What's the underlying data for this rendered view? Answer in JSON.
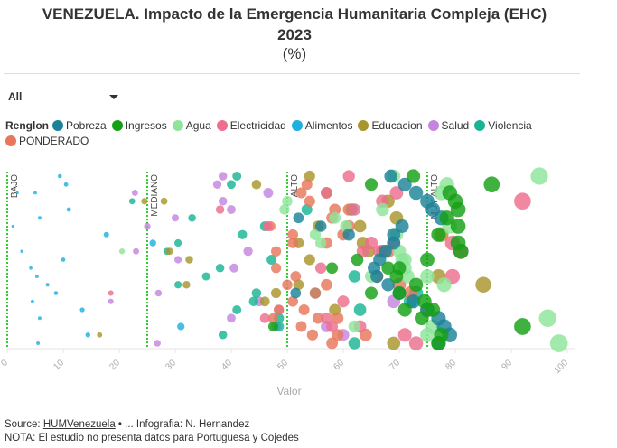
{
  "header": {
    "title": "VENEZUELA. Impacto de la Emergencia Humanitaria Compleja (EHC)",
    "title_line2": "2023",
    "subtitle": "(%)"
  },
  "filter": {
    "selected": "All"
  },
  "legend": {
    "title": "Renglon",
    "items": [
      {
        "label": "Pobreza",
        "color": "#1b8398"
      },
      {
        "label": "Ingresos",
        "color": "#14a014"
      },
      {
        "label": "Agua",
        "color": "#8ee59a"
      },
      {
        "label": "Electricidad",
        "color": "#ed6e8e"
      },
      {
        "label": "Alimentos",
        "color": "#1fb0e1"
      },
      {
        "label": "Educacion",
        "color": "#a8952c"
      },
      {
        "label": "Salud",
        "color": "#c585df"
      },
      {
        "label": "Violencia",
        "color": "#19b494"
      },
      {
        "label": "PONDERADO",
        "color": "#e8765a"
      }
    ]
  },
  "chart_data": {
    "type": "scatter",
    "title": "VENEZUELA. Impacto de la Emergencia Humanitaria Compleja (EHC) 2023 (%)",
    "xlabel": "Valor",
    "ylabel": "",
    "xlim": [
      0,
      100
    ],
    "x_ticks": [
      "0",
      "10",
      "20",
      "30",
      "40",
      "50",
      "60",
      "70",
      "80",
      "90",
      "100"
    ],
    "rows": 21,
    "reference_lines": [
      {
        "value": 0,
        "label": "BAJO"
      },
      {
        "value": 25,
        "label": "MEDIANO"
      },
      {
        "value": 50,
        "label": "ALTO"
      },
      {
        "value": 75,
        "label": "MUY ALTO"
      }
    ],
    "series": [
      {
        "name": "Alimentos",
        "points": [
          [
            9.4,
            0
          ],
          [
            10.5,
            1
          ],
          [
            5,
            2
          ],
          [
            1.8,
            2
          ],
          [
            11,
            4
          ],
          [
            5.8,
            5
          ],
          [
            1,
            6
          ],
          [
            17.7,
            7
          ],
          [
            26,
            8
          ],
          [
            2.6,
            9
          ],
          [
            10,
            10
          ],
          [
            4.2,
            11
          ],
          [
            5.3,
            12
          ],
          [
            7.2,
            13
          ],
          [
            8.7,
            14
          ],
          [
            4.5,
            15
          ],
          [
            13.4,
            16
          ],
          [
            5.8,
            17
          ],
          [
            31,
            18
          ],
          [
            14.4,
            19
          ],
          [
            5.5,
            20
          ]
        ]
      },
      {
        "name": "Salud",
        "points": [
          [
            38.5,
            0
          ],
          [
            37.5,
            1
          ],
          [
            46.6,
            2
          ],
          [
            38.5,
            3
          ],
          [
            40,
            4
          ],
          [
            30,
            5
          ],
          [
            25,
            6
          ],
          [
            43,
            9
          ],
          [
            30.5,
            10
          ],
          [
            40.5,
            11
          ],
          [
            27,
            14
          ],
          [
            45,
            15
          ],
          [
            48.5,
            16
          ],
          [
            40,
            17
          ],
          [
            48,
            18
          ],
          [
            26.8,
            20
          ],
          [
            57,
            18
          ],
          [
            60,
            19
          ],
          [
            69,
            15
          ],
          [
            18.5,
            15
          ],
          [
            23,
            9
          ],
          [
            22.8,
            2
          ]
        ]
      },
      {
        "name": "Violencia",
        "points": [
          [
            41,
            0
          ],
          [
            40,
            1
          ],
          [
            22.3,
            3
          ],
          [
            33,
            5
          ],
          [
            30.5,
            8
          ],
          [
            28.5,
            9
          ],
          [
            46,
            6
          ],
          [
            42,
            7
          ],
          [
            38,
            11
          ],
          [
            35.5,
            12
          ],
          [
            44.5,
            14
          ],
          [
            30.5,
            13
          ],
          [
            44,
            15
          ],
          [
            62,
            12
          ],
          [
            72,
            15
          ],
          [
            63,
            16
          ],
          [
            41,
            16
          ],
          [
            48.5,
            17
          ],
          [
            48.5,
            18
          ],
          [
            38.5,
            19
          ],
          [
            62,
            20
          ],
          [
            47.2,
            10
          ],
          [
            53.5,
            4
          ],
          [
            55,
            14
          ],
          [
            73,
            14
          ],
          [
            61.5,
            4
          ]
        ]
      },
      {
        "name": "Educacion",
        "points": [
          [
            44.5,
            1
          ],
          [
            28,
            3
          ],
          [
            24.5,
            3
          ],
          [
            54,
            0
          ],
          [
            57,
            2
          ],
          [
            48,
            14
          ],
          [
            32,
            13
          ],
          [
            29,
            9
          ],
          [
            32.5,
            10
          ],
          [
            46,
            15
          ],
          [
            52,
            8
          ],
          [
            54,
            10
          ],
          [
            63.5,
            8
          ],
          [
            68,
            3
          ],
          [
            63,
            6
          ],
          [
            55.5,
            6
          ],
          [
            64.5,
            9
          ],
          [
            69.5,
            5
          ],
          [
            67,
            9
          ],
          [
            69,
            20
          ],
          [
            77,
            12
          ],
          [
            77.5,
            7
          ],
          [
            85,
            13
          ],
          [
            16.5,
            19
          ],
          [
            75,
            16
          ],
          [
            58.5,
            16
          ],
          [
            52,
            13
          ]
        ]
      },
      {
        "name": "PONDERADO",
        "points": [
          [
            53.5,
            1
          ],
          [
            52.5,
            2
          ],
          [
            54,
            3
          ],
          [
            58.5,
            4
          ],
          [
            48,
            11
          ],
          [
            51,
            7
          ],
          [
            51,
            8
          ],
          [
            57,
            8
          ],
          [
            55,
            14
          ],
          [
            51,
            15
          ],
          [
            48.5,
            16
          ],
          [
            53,
            16
          ],
          [
            47.5,
            17
          ],
          [
            50,
            13
          ],
          [
            57,
            13
          ],
          [
            52.5,
            18
          ],
          [
            51.5,
            12
          ],
          [
            48,
            9
          ],
          [
            47,
            6
          ],
          [
            59,
            17
          ],
          [
            61,
            4
          ],
          [
            58,
            5
          ],
          [
            55.5,
            17
          ],
          [
            54.5,
            19
          ],
          [
            58,
            20
          ],
          [
            59,
            19
          ],
          [
            64,
            19
          ],
          [
            66,
            12
          ],
          [
            61,
            6
          ],
          [
            60,
            7
          ],
          [
            68,
            9
          ],
          [
            72,
            14
          ],
          [
            70,
            13
          ]
        ]
      },
      {
        "name": "Electricidad",
        "points": [
          [
            38,
            4
          ],
          [
            18.5,
            14
          ],
          [
            46.5,
            6
          ],
          [
            46,
            17
          ],
          [
            61,
            0
          ],
          [
            57,
            2
          ],
          [
            62,
            4
          ],
          [
            65,
            8
          ],
          [
            66.5,
            9
          ],
          [
            67,
            3
          ],
          [
            63.5,
            9
          ],
          [
            56,
            11
          ],
          [
            60,
            15
          ],
          [
            69,
            8
          ],
          [
            71,
            19
          ],
          [
            69.5,
            2
          ],
          [
            73,
            20
          ],
          [
            79.5,
            8
          ],
          [
            81,
            9
          ],
          [
            92,
            3
          ],
          [
            79.5,
            12
          ],
          [
            57,
            17
          ],
          [
            58,
            18
          ],
          [
            63,
            18
          ]
        ]
      },
      {
        "name": "Agua",
        "points": [
          [
            20.5,
            9
          ],
          [
            50,
            3
          ],
          [
            55,
            7
          ],
          [
            56,
            8
          ],
          [
            58.5,
            5
          ],
          [
            60.5,
            6
          ],
          [
            65,
            12
          ],
          [
            67,
            4
          ],
          [
            69,
            0
          ],
          [
            69.5,
            7
          ],
          [
            71,
            10
          ],
          [
            71,
            11
          ],
          [
            71.5,
            12
          ],
          [
            70.5,
            10
          ],
          [
            75,
            12
          ],
          [
            76,
            18
          ],
          [
            78,
            13
          ],
          [
            79,
            6
          ],
          [
            78.5,
            1
          ],
          [
            77.5,
            2
          ],
          [
            98.5,
            20
          ],
          [
            96.5,
            17
          ],
          [
            95,
            0
          ],
          [
            62,
            18
          ],
          [
            70,
            9
          ],
          [
            49.5,
            4
          ],
          [
            75,
            19
          ]
        ]
      },
      {
        "name": "Pobreza",
        "points": [
          [
            68.5,
            0
          ],
          [
            71,
            1
          ],
          [
            73,
            2
          ],
          [
            75,
            3
          ],
          [
            76,
            4
          ],
          [
            77.5,
            5
          ],
          [
            70.5,
            6
          ],
          [
            69,
            7
          ],
          [
            69,
            8
          ],
          [
            67.5,
            9
          ],
          [
            66.5,
            10
          ],
          [
            65.5,
            11
          ],
          [
            66,
            12
          ],
          [
            68,
            13
          ],
          [
            70,
            14
          ],
          [
            72.5,
            15
          ],
          [
            75,
            16
          ],
          [
            77,
            17
          ],
          [
            78,
            18
          ],
          [
            79,
            19
          ],
          [
            77,
            20
          ],
          [
            61,
            7
          ],
          [
            56,
            6
          ],
          [
            52,
            5
          ],
          [
            51.5,
            14
          ]
        ]
      },
      {
        "name": "Ingresos",
        "points": [
          [
            72.5,
            0
          ],
          [
            65,
            1
          ],
          [
            79,
            2
          ],
          [
            80,
            3
          ],
          [
            80.5,
            4
          ],
          [
            78.5,
            5
          ],
          [
            80.5,
            6
          ],
          [
            77,
            7
          ],
          [
            80.5,
            8
          ],
          [
            81,
            9
          ],
          [
            75,
            10
          ],
          [
            68,
            11
          ],
          [
            70,
            11
          ],
          [
            69.5,
            12
          ],
          [
            73,
            13
          ],
          [
            70,
            14
          ],
          [
            74.5,
            15
          ],
          [
            76,
            16
          ],
          [
            77.5,
            19
          ],
          [
            77,
            20
          ],
          [
            86.5,
            1
          ],
          [
            92,
            18
          ],
          [
            47.5,
            18
          ],
          [
            58,
            11
          ],
          [
            62.5,
            10
          ],
          [
            65,
            14
          ],
          [
            71,
            16
          ],
          [
            74,
            17
          ]
        ]
      }
    ]
  },
  "footer": {
    "source_prefix": "Source: ",
    "source_link": "HUMVenezuela",
    "source_suffix": " • ... Infografia: N. Hernandez",
    "note": "NOTA: El estudio no presenta datos para Portuguesa y Cojedes"
  }
}
